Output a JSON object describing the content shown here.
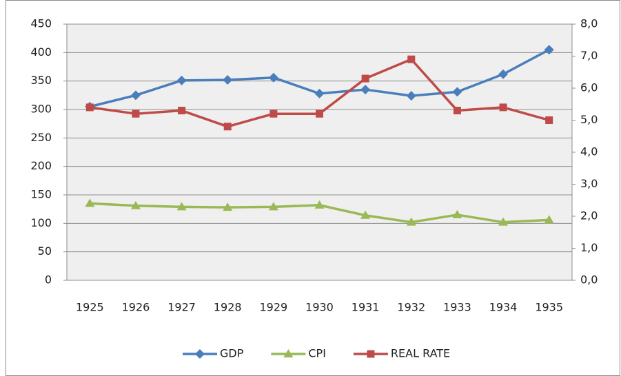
{
  "chart_data": {
    "type": "line",
    "categories": [
      "1925",
      "1926",
      "1927",
      "1928",
      "1929",
      "1930",
      "1931",
      "1932",
      "1933",
      "1934",
      "1935"
    ],
    "series": [
      {
        "name": "GDP",
        "color": "#4a7ebb",
        "marker": "diamond",
        "values": [
          305,
          325,
          351,
          352,
          356,
          328,
          335,
          324,
          331,
          362,
          405
        ]
      },
      {
        "name": "CPI",
        "color": "#98b954",
        "marker": "triangle",
        "values": [
          135,
          131,
          129,
          128,
          129,
          132,
          114,
          102,
          115,
          102,
          106
        ]
      },
      {
        "name": "REAL RATE",
        "color": "#be4b48",
        "marker": "square",
        "axis": "y2",
        "values": [
          5.4,
          5.2,
          5.3,
          4.8,
          5.2,
          5.2,
          6.3,
          6.9,
          5.3,
          5.4,
          5.0
        ]
      }
    ],
    "ylim": [
      0,
      450
    ],
    "yticks": [
      0,
      50,
      100,
      150,
      200,
      250,
      300,
      350,
      400,
      450
    ],
    "y2lim": [
      0,
      8
    ],
    "y2ticks": [
      {
        "value": 0,
        "label": "0,0"
      },
      {
        "value": 1,
        "label": "1,0"
      },
      {
        "value": 2,
        "label": "2,0"
      },
      {
        "value": 3,
        "label": "3,0"
      },
      {
        "value": 4,
        "label": "4,0"
      },
      {
        "value": 5,
        "label": "5,0"
      },
      {
        "value": 6,
        "label": "6,0"
      },
      {
        "value": 7,
        "label": "7,0"
      },
      {
        "value": 8,
        "label": "8,0"
      }
    ],
    "grid": true,
    "legend": "bottom"
  }
}
